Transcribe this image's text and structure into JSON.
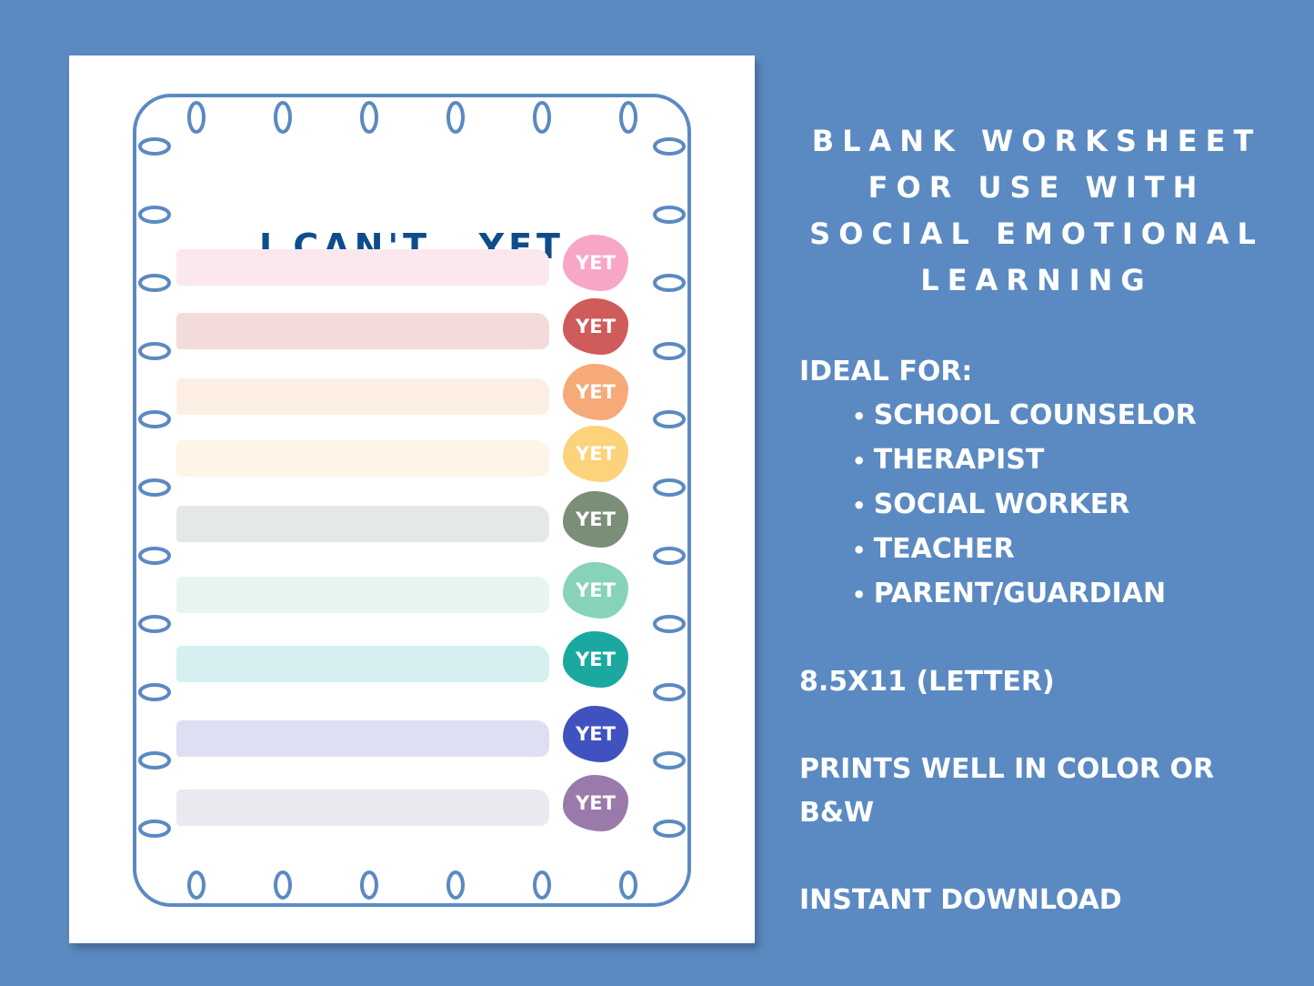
{
  "worksheet": {
    "title": "I CAN'T...YET",
    "badge_label": "YET",
    "frame_color": "#5b8ac2",
    "rows": [
      {
        "stroke": "#fbe8ef",
        "blob": "#f7a6c8"
      },
      {
        "stroke": "#f3dadb",
        "blob": "#cf5b5b"
      },
      {
        "stroke": "#fdeee3",
        "blob": "#f5aa78"
      },
      {
        "stroke": "#fef5e6",
        "blob": "#fcd27a"
      },
      {
        "stroke": "#e4e9e5",
        "blob": "#7a8e78"
      },
      {
        "stroke": "#e6f5f0",
        "blob": "#86d3b9"
      },
      {
        "stroke": "#d6eff0",
        "blob": "#1aa8a0"
      },
      {
        "stroke": "#dde0f2",
        "blob": "#3f52bf"
      },
      {
        "stroke": "#ece8f0",
        "blob": "#9a7aaa"
      }
    ]
  },
  "description": {
    "headline_lines": [
      "BLANK WORKSHEET",
      "FOR USE WITH",
      "SOCIAL EMOTIONAL",
      "LEARNING"
    ],
    "ideal_for_label": "IDEAL FOR:",
    "ideal_for": [
      "SCHOOL COUNSELOR",
      "THERAPIST",
      "SOCIAL WORKER",
      "TEACHER",
      "PARENT/GUARDIAN"
    ],
    "size": "8.5X11 (LETTER)",
    "print_note": "PRINTS WELL IN COLOR OR B&W",
    "download": "INSTANT DOWNLOAD"
  }
}
